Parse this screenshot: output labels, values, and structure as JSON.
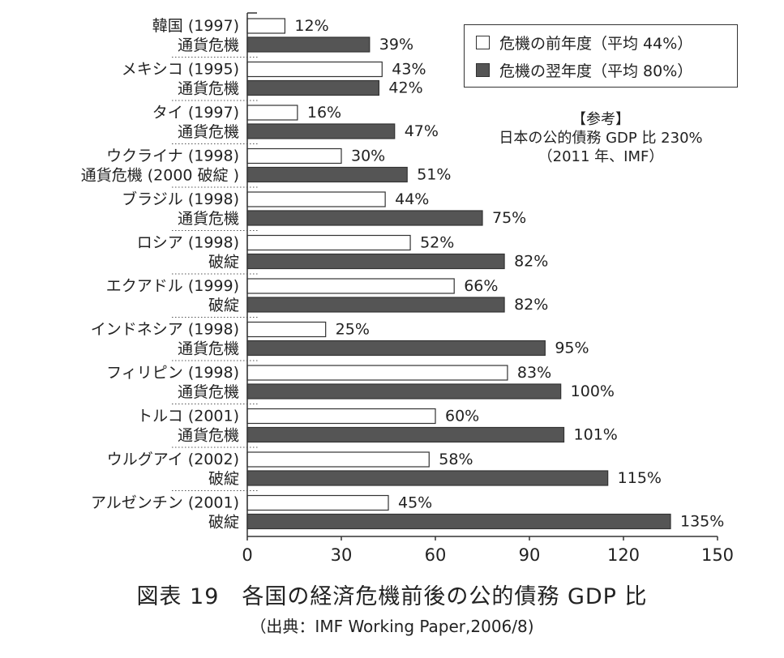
{
  "chart_data": {
    "type": "bar",
    "orientation": "horizontal",
    "title": "図表 19　各国の経済危機前後の公的債務 GDP 比",
    "subtitle": "（出典：IMF Working Paper,2006/8)",
    "xlim": [
      0,
      150
    ],
    "xticks": [
      "0",
      "30",
      "60",
      "90",
      "120",
      "150"
    ],
    "categories": [
      {
        "name": "韓国 (1997)",
        "note": "通貨危機"
      },
      {
        "name": "メキシコ (1995)",
        "note": "通貨危機"
      },
      {
        "name": "タイ (1997)",
        "note": "通貨危機"
      },
      {
        "name": "ウクライナ (1998)",
        "note": "通貨危機 (2000 破綻 )"
      },
      {
        "name": "ブラジル (1998)",
        "note": "通貨危機"
      },
      {
        "name": "ロシア (1998)",
        "note": "破綻"
      },
      {
        "name": "エクアドル (1999)",
        "note": "破綻"
      },
      {
        "name": "インドネシア (1998)",
        "note": "通貨危機"
      },
      {
        "name": "フィリピン (1998)",
        "note": "通貨危機"
      },
      {
        "name": "トルコ (2001)",
        "note": "通貨危機"
      },
      {
        "name": "ウルグアイ (2002)",
        "note": "破綻"
      },
      {
        "name": "アルゼンチン (2001)",
        "note": "破綻"
      }
    ],
    "series": [
      {
        "name": "危機の前年度（平均 44%）",
        "color": "#ffffff",
        "values": [
          12,
          43,
          16,
          30,
          44,
          52,
          66,
          25,
          83,
          60,
          58,
          45
        ],
        "labels": [
          "12%",
          "43%",
          "16%",
          "30%",
          "44%",
          "52%",
          "66%",
          "25%",
          "83%",
          "60%",
          "58%",
          "45%"
        ]
      },
      {
        "name": "危機の翌年度（平均 80%）",
        "color": "#555555",
        "values": [
          39,
          42,
          47,
          51,
          75,
          82,
          82,
          95,
          100,
          101,
          115,
          135
        ],
        "labels": [
          "39%",
          "42%",
          "47%",
          "51%",
          "75%",
          "82%",
          "82%",
          "95%",
          "100%",
          "101%",
          "115%",
          "135%"
        ]
      }
    ],
    "legend_position": "top-right",
    "annotation": {
      "line1": "【参考】",
      "line2": "日本の公的債務 GDP 比 230%",
      "line3": "（2011 年、IMF）"
    }
  }
}
